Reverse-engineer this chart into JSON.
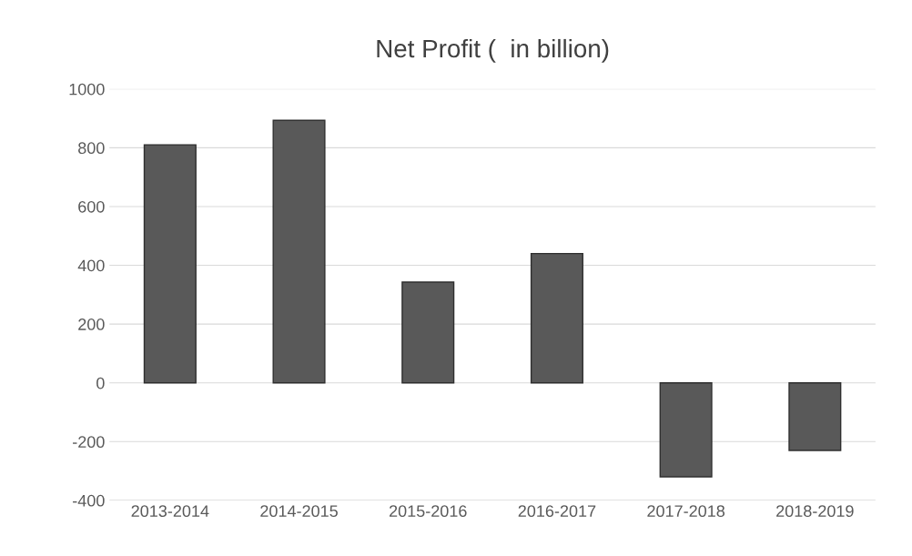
{
  "chart_data": {
    "type": "bar",
    "title": "Net Profit (  in billion)",
    "categories": [
      "2013-2014",
      "2014-2015",
      "2015-2016",
      "2016-2017",
      "2017-2018",
      "2018-2019"
    ],
    "values": [
      810,
      893,
      343,
      440,
      -320,
      -230
    ],
    "color": "#595959",
    "ylim": [
      -400,
      1000
    ],
    "yticks": [
      -400,
      -200,
      0,
      200,
      400,
      600,
      800,
      1000
    ],
    "grid": "y"
  }
}
